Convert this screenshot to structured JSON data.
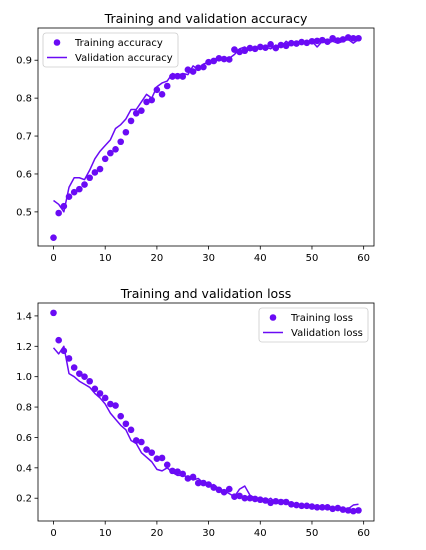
{
  "chart_data": [
    {
      "type": "line",
      "title": "Training and validation accuracy",
      "xlabel": "",
      "ylabel": "",
      "xlim": [
        -3,
        62
      ],
      "ylim": [
        0.41,
        0.985
      ],
      "xticks": [
        0,
        10,
        20,
        30,
        40,
        50,
        60
      ],
      "yticks": [
        0.5,
        0.6,
        0.7,
        0.8,
        0.9
      ],
      "ytick_labels": [
        "0.5",
        "0.6",
        "0.7",
        "0.8",
        "0.9"
      ],
      "legend_position": "top-left",
      "grid": false,
      "series": [
        {
          "name": "Training accuracy",
          "style": "dots",
          "color": "#6a0bf5",
          "x": [
            0,
            1,
            2,
            3,
            4,
            5,
            6,
            7,
            8,
            9,
            10,
            11,
            12,
            13,
            14,
            15,
            16,
            17,
            18,
            19,
            20,
            21,
            22,
            23,
            24,
            25,
            26,
            27,
            28,
            29,
            30,
            31,
            32,
            33,
            34,
            35,
            36,
            37,
            38,
            39,
            40,
            41,
            42,
            43,
            44,
            45,
            46,
            47,
            48,
            49,
            50,
            51,
            52,
            53,
            54,
            55,
            56,
            57,
            58,
            59
          ],
          "values": [
            0.432,
            0.497,
            0.515,
            0.54,
            0.552,
            0.56,
            0.572,
            0.59,
            0.604,
            0.613,
            0.64,
            0.655,
            0.665,
            0.685,
            0.71,
            0.74,
            0.76,
            0.767,
            0.79,
            0.795,
            0.822,
            0.81,
            0.832,
            0.857,
            0.858,
            0.857,
            0.875,
            0.87,
            0.88,
            0.882,
            0.895,
            0.898,
            0.905,
            0.903,
            0.902,
            0.928,
            0.922,
            0.925,
            0.932,
            0.93,
            0.935,
            0.933,
            0.942,
            0.932,
            0.94,
            0.938,
            0.945,
            0.944,
            0.948,
            0.946,
            0.95,
            0.951,
            0.953,
            0.949,
            0.958,
            0.952,
            0.955,
            0.96,
            0.958,
            0.958
          ]
        },
        {
          "name": "Validation accuracy",
          "style": "line",
          "color": "#6a0bf5",
          "x": [
            0,
            1,
            2,
            3,
            4,
            5,
            6,
            7,
            8,
            9,
            10,
            11,
            12,
            13,
            14,
            15,
            16,
            17,
            18,
            19,
            20,
            21,
            22,
            23,
            24,
            25,
            26,
            27,
            28,
            29,
            30,
            31,
            32,
            33,
            34,
            35,
            36,
            37,
            38,
            39,
            40,
            41,
            42,
            43,
            44,
            45,
            46,
            47,
            48,
            49,
            50,
            51,
            52,
            53,
            54,
            55,
            56,
            57,
            58,
            59
          ],
          "values": [
            0.53,
            0.52,
            0.5,
            0.565,
            0.59,
            0.59,
            0.585,
            0.61,
            0.64,
            0.66,
            0.675,
            0.69,
            0.72,
            0.73,
            0.745,
            0.77,
            0.77,
            0.79,
            0.81,
            0.8,
            0.83,
            0.84,
            0.845,
            0.865,
            0.86,
            0.865,
            0.862,
            0.885,
            0.875,
            0.89,
            0.895,
            0.9,
            0.91,
            0.9,
            0.905,
            0.915,
            0.93,
            0.935,
            0.925,
            0.93,
            0.935,
            0.935,
            0.93,
            0.94,
            0.935,
            0.95,
            0.94,
            0.945,
            0.95,
            0.945,
            0.95,
            0.935,
            0.95,
            0.945,
            0.95,
            0.945,
            0.95,
            0.955,
            0.945,
            0.955
          ]
        }
      ]
    },
    {
      "type": "line",
      "title": "Training and validation loss",
      "xlabel": "",
      "ylabel": "",
      "xlim": [
        -3,
        62
      ],
      "ylim": [
        0.05,
        1.485
      ],
      "xticks": [
        0,
        10,
        20,
        30,
        40,
        50,
        60
      ],
      "yticks": [
        0.2,
        0.4,
        0.6,
        0.8,
        1.0,
        1.2,
        1.4
      ],
      "ytick_labels": [
        "0.2",
        "0.4",
        "0.6",
        "0.8",
        "1.0",
        "1.2",
        "1.4"
      ],
      "legend_position": "top-right",
      "grid": false,
      "series": [
        {
          "name": "Training loss",
          "style": "dots",
          "color": "#6a0bf5",
          "x": [
            0,
            1,
            2,
            3,
            4,
            5,
            6,
            7,
            8,
            9,
            10,
            11,
            12,
            13,
            14,
            15,
            16,
            17,
            18,
            19,
            20,
            21,
            22,
            23,
            24,
            25,
            26,
            27,
            28,
            29,
            30,
            31,
            32,
            33,
            34,
            35,
            36,
            37,
            38,
            39,
            40,
            41,
            42,
            43,
            44,
            45,
            46,
            47,
            48,
            49,
            50,
            51,
            52,
            53,
            54,
            55,
            56,
            57,
            58,
            59
          ],
          "values": [
            1.42,
            1.24,
            1.17,
            1.12,
            1.06,
            1.02,
            1.0,
            0.97,
            0.92,
            0.89,
            0.86,
            0.82,
            0.81,
            0.74,
            0.69,
            0.65,
            0.58,
            0.57,
            0.52,
            0.5,
            0.46,
            0.465,
            0.42,
            0.38,
            0.375,
            0.36,
            0.33,
            0.34,
            0.3,
            0.3,
            0.29,
            0.27,
            0.255,
            0.24,
            0.26,
            0.21,
            0.215,
            0.2,
            0.2,
            0.195,
            0.19,
            0.185,
            0.17,
            0.18,
            0.175,
            0.175,
            0.16,
            0.155,
            0.15,
            0.15,
            0.145,
            0.14,
            0.14,
            0.14,
            0.13,
            0.135,
            0.125,
            0.12,
            0.115,
            0.12
          ]
        },
        {
          "name": "Validation loss",
          "style": "line",
          "color": "#6a0bf5",
          "x": [
            0,
            1,
            2,
            3,
            4,
            5,
            6,
            7,
            8,
            9,
            10,
            11,
            12,
            13,
            14,
            15,
            16,
            17,
            18,
            19,
            20,
            21,
            22,
            23,
            24,
            25,
            26,
            27,
            28,
            29,
            30,
            31,
            32,
            33,
            34,
            35,
            36,
            37,
            38,
            39,
            40,
            41,
            42,
            43,
            44,
            45,
            46,
            47,
            48,
            49,
            50,
            51,
            52,
            53,
            54,
            55,
            56,
            57,
            58,
            59
          ],
          "values": [
            1.19,
            1.15,
            1.2,
            1.02,
            1.0,
            0.97,
            0.95,
            0.93,
            0.89,
            0.86,
            0.82,
            0.76,
            0.72,
            0.68,
            0.65,
            0.58,
            0.56,
            0.5,
            0.47,
            0.44,
            0.39,
            0.38,
            0.4,
            0.37,
            0.35,
            0.35,
            0.34,
            0.32,
            0.33,
            0.3,
            0.28,
            0.29,
            0.26,
            0.25,
            0.23,
            0.21,
            0.26,
            0.28,
            0.22,
            0.2,
            0.19,
            0.18,
            0.2,
            0.17,
            0.19,
            0.18,
            0.17,
            0.16,
            0.15,
            0.16,
            0.15,
            0.15,
            0.13,
            0.14,
            0.14,
            0.13,
            0.12,
            0.13,
            0.155,
            0.16
          ]
        }
      ]
    }
  ]
}
